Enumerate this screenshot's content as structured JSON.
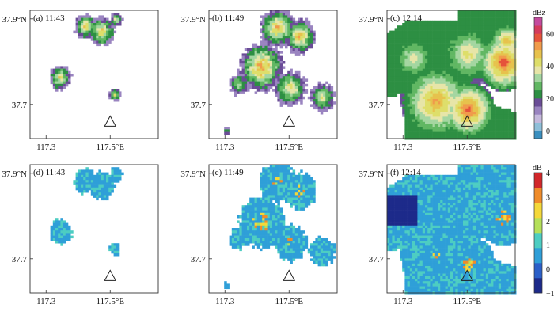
{
  "chart_data": {
    "type": "heatmap",
    "panels": [
      {
        "id": "a",
        "label": "(a) 11:43",
        "variable": "reflectivity",
        "col": 0,
        "row": 0
      },
      {
        "id": "b",
        "label": "(b) 11:49",
        "variable": "reflectivity",
        "col": 1,
        "row": 0
      },
      {
        "id": "c",
        "label": "(c) 12:14",
        "variable": "reflectivity",
        "col": 2,
        "row": 0
      },
      {
        "id": "d",
        "label": "(d) 11:43",
        "variable": "differential_reflectivity",
        "col": 0,
        "row": 1
      },
      {
        "id": "e",
        "label": "(e) 11:49",
        "variable": "differential_reflectivity",
        "col": 1,
        "row": 1
      },
      {
        "id": "f",
        "label": "(f) 12:14",
        "variable": "differential_reflectivity",
        "col": 2,
        "row": 1
      }
    ],
    "x_axis": {
      "ticks": [
        "117.3",
        "117.5°E"
      ],
      "lon_range": [
        117.25,
        117.65
      ]
    },
    "y_axis": {
      "ticks": [
        "37.9°N",
        "37.7"
      ],
      "lat_range": [
        37.62,
        37.92
      ]
    },
    "site_marker": {
      "lon": 117.5,
      "lat": 37.66,
      "shape": "triangle"
    },
    "colorbars": [
      {
        "unit": "dBz",
        "ticks": [
          "60",
          "40",
          "20",
          "0"
        ],
        "levels": [
          0,
          5,
          10,
          15,
          20,
          25,
          30,
          35,
          40,
          45,
          50,
          55,
          60,
          65,
          70
        ],
        "colors": [
          "#3a8fbf",
          "#8fbfd9",
          "#c5b9dc",
          "#9a84c0",
          "#6a4c96",
          "#2d8f43",
          "#61b763",
          "#a4d6a1",
          "#e7e5a8",
          "#dede6a",
          "#e7c24d",
          "#f09b4b",
          "#e5533b",
          "#d43b5c",
          "#c44a9e"
        ]
      },
      {
        "unit": "dB",
        "ticks": [
          "4",
          "3",
          "2",
          "1",
          "0",
          "−1"
        ],
        "levels": [
          -1,
          4
        ],
        "colors": [
          "#1d2a8a",
          "#2b5fc8",
          "#2f9fd8",
          "#4dcdc2",
          "#b5e05a",
          "#f4d83a",
          "#f08c2a",
          "#d2272a"
        ]
      }
    ],
    "reflectivity_cells": {
      "a": [
        {
          "lon": 117.42,
          "lat": 37.885,
          "dbz": 28
        },
        {
          "lon": 117.47,
          "lat": 37.875,
          "dbz": 30
        },
        {
          "lon": 117.515,
          "lat": 37.9,
          "dbz": 22
        },
        {
          "lon": 117.34,
          "lat": 37.765,
          "dbz": 25
        },
        {
          "lon": 117.51,
          "lat": 37.726,
          "dbz": 20
        }
      ],
      "b": [
        {
          "lon": 117.46,
          "lat": 37.885,
          "dbz": 38
        },
        {
          "lon": 117.53,
          "lat": 37.86,
          "dbz": 40
        },
        {
          "lon": 117.42,
          "lat": 37.79,
          "dbz": 45
        },
        {
          "lon": 117.5,
          "lat": 37.735,
          "dbz": 36
        },
        {
          "lon": 117.6,
          "lat": 37.72,
          "dbz": 30
        }
      ],
      "c": [
        {
          "lon": 117.33,
          "lat": 37.8,
          "dbz": 45
        },
        {
          "lon": 117.5,
          "lat": 37.83,
          "dbz": 52
        },
        {
          "lon": 117.6,
          "lat": 37.79,
          "dbz": 62
        },
        {
          "lon": 117.38,
          "lat": 37.71,
          "dbz": 58
        },
        {
          "lon": 117.5,
          "lat": 37.69,
          "dbz": 64
        }
      ]
    }
  }
}
